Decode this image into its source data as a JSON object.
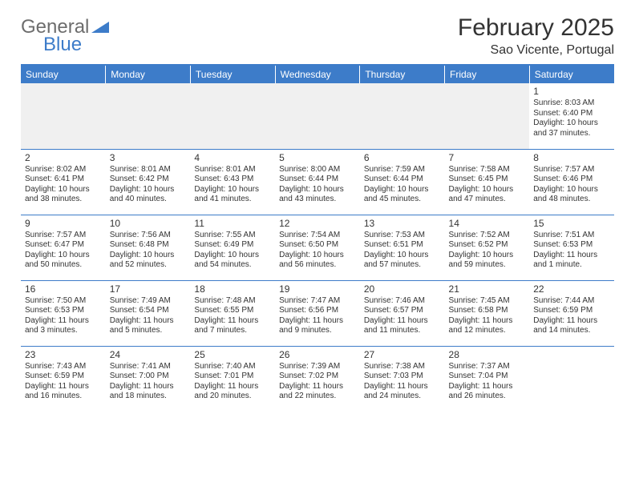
{
  "logo": {
    "text1": "General",
    "text2": "Blue"
  },
  "title": "February 2025",
  "location": "Sao Vicente, Portugal",
  "colors": {
    "accent": "#3d7cc9",
    "text": "#333333",
    "logo_gray": "#6d6d6d",
    "bg": "#ffffff",
    "empty_bg": "#f0f0f0"
  },
  "weekdays": [
    "Sunday",
    "Monday",
    "Tuesday",
    "Wednesday",
    "Thursday",
    "Friday",
    "Saturday"
  ],
  "days": {
    "1": {
      "sunrise": "Sunrise: 8:03 AM",
      "sunset": "Sunset: 6:40 PM",
      "daylight": "Daylight: 10 hours and 37 minutes."
    },
    "2": {
      "sunrise": "Sunrise: 8:02 AM",
      "sunset": "Sunset: 6:41 PM",
      "daylight": "Daylight: 10 hours and 38 minutes."
    },
    "3": {
      "sunrise": "Sunrise: 8:01 AM",
      "sunset": "Sunset: 6:42 PM",
      "daylight": "Daylight: 10 hours and 40 minutes."
    },
    "4": {
      "sunrise": "Sunrise: 8:01 AM",
      "sunset": "Sunset: 6:43 PM",
      "daylight": "Daylight: 10 hours and 41 minutes."
    },
    "5": {
      "sunrise": "Sunrise: 8:00 AM",
      "sunset": "Sunset: 6:44 PM",
      "daylight": "Daylight: 10 hours and 43 minutes."
    },
    "6": {
      "sunrise": "Sunrise: 7:59 AM",
      "sunset": "Sunset: 6:44 PM",
      "daylight": "Daylight: 10 hours and 45 minutes."
    },
    "7": {
      "sunrise": "Sunrise: 7:58 AM",
      "sunset": "Sunset: 6:45 PM",
      "daylight": "Daylight: 10 hours and 47 minutes."
    },
    "8": {
      "sunrise": "Sunrise: 7:57 AM",
      "sunset": "Sunset: 6:46 PM",
      "daylight": "Daylight: 10 hours and 48 minutes."
    },
    "9": {
      "sunrise": "Sunrise: 7:57 AM",
      "sunset": "Sunset: 6:47 PM",
      "daylight": "Daylight: 10 hours and 50 minutes."
    },
    "10": {
      "sunrise": "Sunrise: 7:56 AM",
      "sunset": "Sunset: 6:48 PM",
      "daylight": "Daylight: 10 hours and 52 minutes."
    },
    "11": {
      "sunrise": "Sunrise: 7:55 AM",
      "sunset": "Sunset: 6:49 PM",
      "daylight": "Daylight: 10 hours and 54 minutes."
    },
    "12": {
      "sunrise": "Sunrise: 7:54 AM",
      "sunset": "Sunset: 6:50 PM",
      "daylight": "Daylight: 10 hours and 56 minutes."
    },
    "13": {
      "sunrise": "Sunrise: 7:53 AM",
      "sunset": "Sunset: 6:51 PM",
      "daylight": "Daylight: 10 hours and 57 minutes."
    },
    "14": {
      "sunrise": "Sunrise: 7:52 AM",
      "sunset": "Sunset: 6:52 PM",
      "daylight": "Daylight: 10 hours and 59 minutes."
    },
    "15": {
      "sunrise": "Sunrise: 7:51 AM",
      "sunset": "Sunset: 6:53 PM",
      "daylight": "Daylight: 11 hours and 1 minute."
    },
    "16": {
      "sunrise": "Sunrise: 7:50 AM",
      "sunset": "Sunset: 6:53 PM",
      "daylight": "Daylight: 11 hours and 3 minutes."
    },
    "17": {
      "sunrise": "Sunrise: 7:49 AM",
      "sunset": "Sunset: 6:54 PM",
      "daylight": "Daylight: 11 hours and 5 minutes."
    },
    "18": {
      "sunrise": "Sunrise: 7:48 AM",
      "sunset": "Sunset: 6:55 PM",
      "daylight": "Daylight: 11 hours and 7 minutes."
    },
    "19": {
      "sunrise": "Sunrise: 7:47 AM",
      "sunset": "Sunset: 6:56 PM",
      "daylight": "Daylight: 11 hours and 9 minutes."
    },
    "20": {
      "sunrise": "Sunrise: 7:46 AM",
      "sunset": "Sunset: 6:57 PM",
      "daylight": "Daylight: 11 hours and 11 minutes."
    },
    "21": {
      "sunrise": "Sunrise: 7:45 AM",
      "sunset": "Sunset: 6:58 PM",
      "daylight": "Daylight: 11 hours and 12 minutes."
    },
    "22": {
      "sunrise": "Sunrise: 7:44 AM",
      "sunset": "Sunset: 6:59 PM",
      "daylight": "Daylight: 11 hours and 14 minutes."
    },
    "23": {
      "sunrise": "Sunrise: 7:43 AM",
      "sunset": "Sunset: 6:59 PM",
      "daylight": "Daylight: 11 hours and 16 minutes."
    },
    "24": {
      "sunrise": "Sunrise: 7:41 AM",
      "sunset": "Sunset: 7:00 PM",
      "daylight": "Daylight: 11 hours and 18 minutes."
    },
    "25": {
      "sunrise": "Sunrise: 7:40 AM",
      "sunset": "Sunset: 7:01 PM",
      "daylight": "Daylight: 11 hours and 20 minutes."
    },
    "26": {
      "sunrise": "Sunrise: 7:39 AM",
      "sunset": "Sunset: 7:02 PM",
      "daylight": "Daylight: 11 hours and 22 minutes."
    },
    "27": {
      "sunrise": "Sunrise: 7:38 AM",
      "sunset": "Sunset: 7:03 PM",
      "daylight": "Daylight: 11 hours and 24 minutes."
    },
    "28": {
      "sunrise": "Sunrise: 7:37 AM",
      "sunset": "Sunset: 7:04 PM",
      "daylight": "Daylight: 11 hours and 26 minutes."
    }
  },
  "layout": {
    "first_day_col": 6,
    "num_days": 28
  }
}
